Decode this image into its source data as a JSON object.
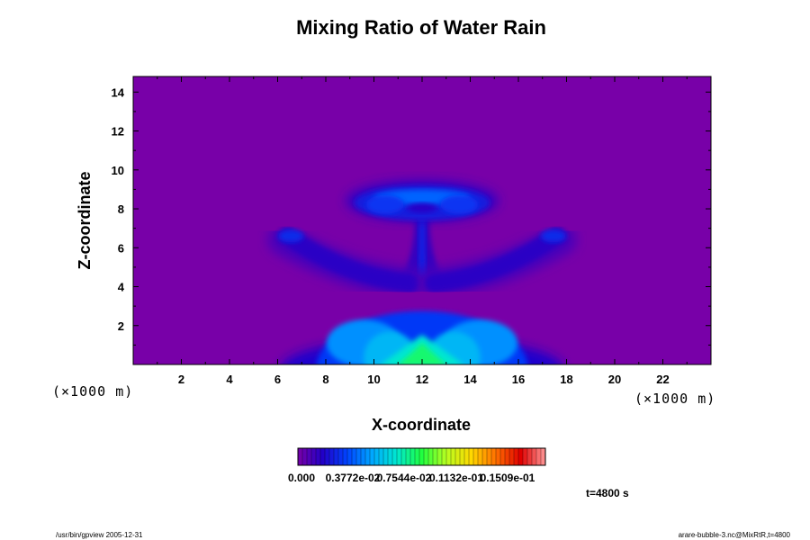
{
  "chart_data": {
    "type": "heatmap",
    "title": "Mixing Ratio of Water Rain",
    "xlabel": "X-coordinate",
    "ylabel": "Z-coordinate",
    "x_unit": "(×1000 m)",
    "y_unit": "(×1000 m)",
    "xlim": [
      0,
      24
    ],
    "ylim": [
      0,
      14.8
    ],
    "x_ticks": [
      "2",
      "4",
      "6",
      "8",
      "10",
      "12",
      "14",
      "16",
      "18",
      "20",
      "22"
    ],
    "y_ticks": [
      "2",
      "4",
      "6",
      "8",
      "10",
      "12",
      "14"
    ],
    "colorbar": {
      "min": 0,
      "max": 0.0189,
      "tick_labels": [
        "0.000",
        "0.3772e-02",
        "0.7544e-02",
        "0.1132e-01",
        "0.1509e-01"
      ],
      "colors": [
        "#7800a8",
        "#2200c8",
        "#0044ff",
        "#00a8ff",
        "#00e8d0",
        "#20ff40",
        "#b8ff20",
        "#ffd800",
        "#ff7000",
        "#e00000",
        "#ff9898"
      ]
    },
    "features": [
      {
        "shape": "stem",
        "x": 12.0,
        "z0": 4.5,
        "z1": 8.2,
        "value": 0.0018
      },
      {
        "shape": "cap",
        "x": 12.0,
        "z": 8.5,
        "half_width": 2.8,
        "half_height": 0.7,
        "value": 0.0035
      },
      {
        "shape": "left-arm",
        "x0": 11.5,
        "z0": 4.2,
        "x1": 6.4,
        "z1": 6.6,
        "value": 0.0019
      },
      {
        "shape": "right-arm",
        "x0": 12.5,
        "z0": 4.2,
        "x1": 17.6,
        "z1": 6.6,
        "value": 0.0019
      },
      {
        "shape": "base-mound",
        "x": 12.0,
        "z": 0.3,
        "half_width": 4.4,
        "height": 3.0,
        "value": 0.0058
      },
      {
        "shape": "core",
        "x": 12.0,
        "z": 0.3,
        "half_width": 1.8,
        "height": 1.6,
        "value": 0.0075
      }
    ],
    "time_label": "t=4800 s"
  },
  "footer": {
    "left": "/usr/bin/gpview 2005-12-31",
    "right": "arare-bubble-3.nc@MixRtR,t=4800"
  }
}
